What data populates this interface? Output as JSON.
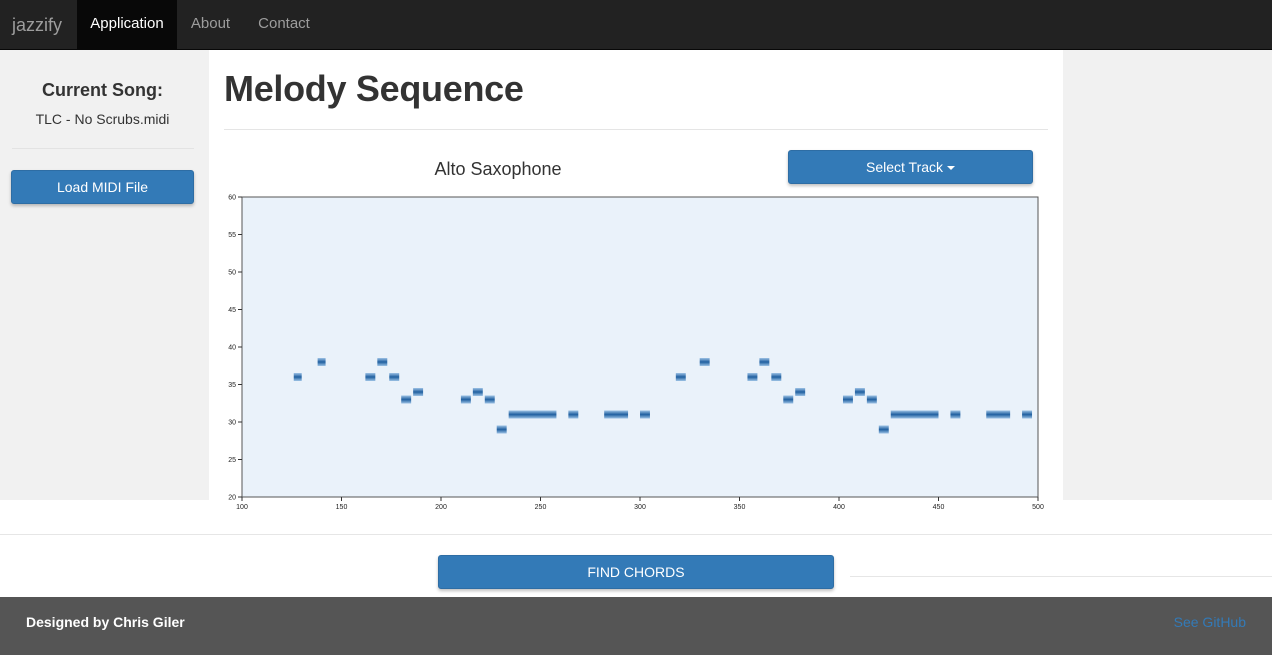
{
  "navbar": {
    "brand": "jazzify",
    "items": [
      {
        "label": "Application",
        "active": true
      },
      {
        "label": "About",
        "active": false
      },
      {
        "label": "Contact",
        "active": false
      }
    ]
  },
  "sidebar": {
    "heading": "Current Song:",
    "song": "TLC - No Scrubs.midi",
    "load_button": "Load MIDI File"
  },
  "main": {
    "title": "Melody Sequence",
    "track_name": "Alto Saxophone",
    "select_button": "Select Track"
  },
  "chart_data": {
    "type": "heatmap",
    "title": "",
    "xlabel": "",
    "ylabel": "",
    "xlim": [
      100,
      500
    ],
    "ylim": [
      20,
      60
    ],
    "xticks": [
      100,
      150,
      200,
      250,
      300,
      350,
      400,
      450,
      500
    ],
    "yticks": [
      20,
      25,
      30,
      35,
      40,
      45,
      50,
      55,
      60
    ],
    "grid": false,
    "background_color": "#eaf2fa",
    "note_color": "#1f5f9f",
    "notes": [
      {
        "start": 126,
        "end": 130,
        "pitch": 36
      },
      {
        "start": 138,
        "end": 142,
        "pitch": 38
      },
      {
        "start": 162,
        "end": 167,
        "pitch": 36
      },
      {
        "start": 168,
        "end": 173,
        "pitch": 38
      },
      {
        "start": 174,
        "end": 179,
        "pitch": 36
      },
      {
        "start": 180,
        "end": 185,
        "pitch": 33
      },
      {
        "start": 186,
        "end": 191,
        "pitch": 34
      },
      {
        "start": 210,
        "end": 215,
        "pitch": 33
      },
      {
        "start": 216,
        "end": 221,
        "pitch": 34
      },
      {
        "start": 222,
        "end": 227,
        "pitch": 33
      },
      {
        "start": 228,
        "end": 233,
        "pitch": 29
      },
      {
        "start": 234,
        "end": 258,
        "pitch": 31
      },
      {
        "start": 264,
        "end": 269,
        "pitch": 31
      },
      {
        "start": 282,
        "end": 294,
        "pitch": 31
      },
      {
        "start": 300,
        "end": 305,
        "pitch": 31
      },
      {
        "start": 318,
        "end": 323,
        "pitch": 36
      },
      {
        "start": 330,
        "end": 335,
        "pitch": 38
      },
      {
        "start": 354,
        "end": 359,
        "pitch": 36
      },
      {
        "start": 360,
        "end": 365,
        "pitch": 38
      },
      {
        "start": 366,
        "end": 371,
        "pitch": 36
      },
      {
        "start": 372,
        "end": 377,
        "pitch": 33
      },
      {
        "start": 378,
        "end": 383,
        "pitch": 34
      },
      {
        "start": 402,
        "end": 407,
        "pitch": 33
      },
      {
        "start": 408,
        "end": 413,
        "pitch": 34
      },
      {
        "start": 414,
        "end": 419,
        "pitch": 33
      },
      {
        "start": 420,
        "end": 425,
        "pitch": 29
      },
      {
        "start": 426,
        "end": 450,
        "pitch": 31
      },
      {
        "start": 456,
        "end": 461,
        "pitch": 31
      },
      {
        "start": 474,
        "end": 486,
        "pitch": 31
      },
      {
        "start": 492,
        "end": 497,
        "pitch": 31
      }
    ]
  },
  "actions": {
    "find_chords": "FIND CHORDS"
  },
  "footer": {
    "credit": "Designed by Chris Giler",
    "link": "See GitHub"
  }
}
